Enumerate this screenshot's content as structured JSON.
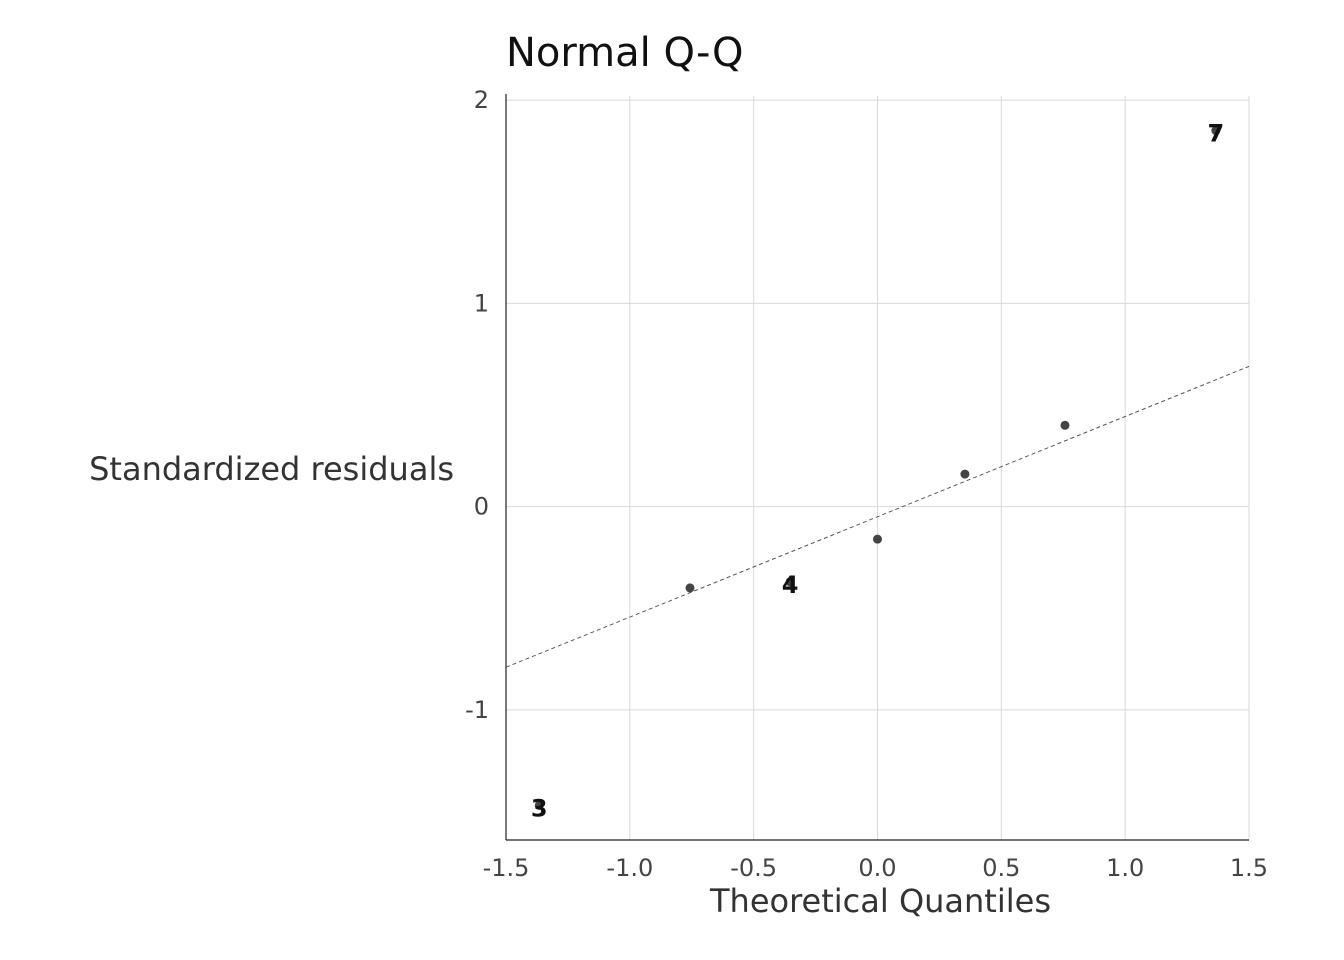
{
  "chart_data": {
    "type": "scatter",
    "title": "Normal Q-Q",
    "xlabel": "Theoretical Quantiles",
    "ylabel": "Standardized residuals",
    "xlim": [
      -1.5,
      1.5
    ],
    "ylim": [
      -1.64,
      2.02
    ],
    "xticks": [
      -1.5,
      -1.0,
      -0.5,
      0.0,
      0.5,
      1.0,
      1.5
    ],
    "xtick_labels": [
      "-1.5",
      "-1.0",
      "-0.5",
      "0.0",
      "0.5",
      "1.0",
      "1.5"
    ],
    "yticks": [
      -1,
      0,
      1,
      2
    ],
    "ytick_labels": [
      "-1",
      "0",
      "1",
      "2"
    ],
    "grid": true,
    "points": [
      {
        "x": -1.366,
        "y": -1.47,
        "label": "3"
      },
      {
        "x": -0.757,
        "y": -0.4,
        "label": ""
      },
      {
        "x": -0.353,
        "y": -0.37,
        "label": "4"
      },
      {
        "x": 0.0,
        "y": -0.16,
        "label": ""
      },
      {
        "x": 0.353,
        "y": 0.16,
        "label": ""
      },
      {
        "x": 0.757,
        "y": 0.4,
        "label": ""
      },
      {
        "x": 1.366,
        "y": 1.85,
        "label": "7"
      }
    ],
    "reference_line": {
      "style": "dashed",
      "x": [
        -1.5,
        1.5
      ],
      "y": [
        -0.79,
        0.69
      ]
    },
    "colors": {
      "points": "#444444",
      "grid": "#d9d9d9",
      "reference_line": "#555555",
      "point_labels": "#111111"
    }
  }
}
